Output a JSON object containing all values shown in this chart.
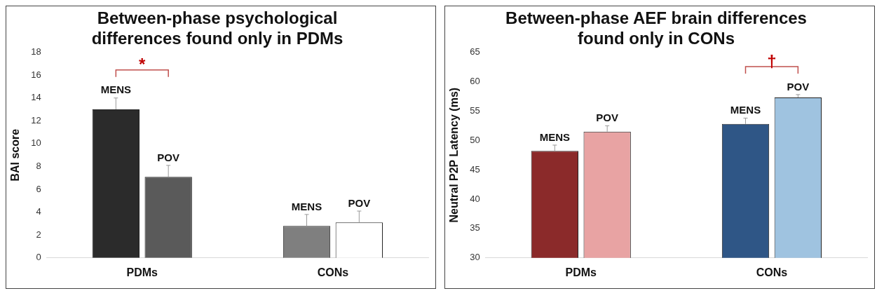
{
  "chart_data": [
    {
      "type": "bar",
      "title": "Between-phase psychological differences found only in PDMs",
      "ylabel": "BAI score",
      "categories": [
        "PDMs",
        "CONs"
      ],
      "series": [
        {
          "name": "MENS",
          "colors": [
            "#2b2b2b",
            "#7f7f7f"
          ],
          "values": [
            13.0,
            2.8
          ],
          "errors": [
            1.0,
            1.0
          ]
        },
        {
          "name": "POV",
          "colors": [
            "#5a5a5a",
            "#ffffff"
          ],
          "values": [
            7.1,
            3.1
          ],
          "errors": [
            1.0,
            1.0
          ]
        }
      ],
      "ylim": [
        0,
        18
      ],
      "yticks": [
        0,
        2,
        4,
        6,
        8,
        10,
        12,
        14,
        16,
        18
      ],
      "grid": false,
      "legend": false,
      "annotations": [
        "*"
      ]
    },
    {
      "type": "bar",
      "title": "Between-phase AEF brain differences found only in CONs",
      "ylabel": "Neutral P2P Latency (ms)",
      "categories": [
        "PDMs",
        "CONs"
      ],
      "series": [
        {
          "name": "MENS",
          "colors": [
            "#8b2a2a",
            "#2f5686"
          ],
          "values": [
            48.2,
            52.8
          ],
          "errors": [
            1.0,
            1.0
          ]
        },
        {
          "name": "POV",
          "colors": [
            "#e8a3a3",
            "#9fc3e0"
          ],
          "values": [
            51.5,
            57.3
          ],
          "errors": [
            1.0,
            0.5
          ]
        }
      ],
      "ylim": [
        30,
        65
      ],
      "yticks": [
        30,
        35,
        40,
        45,
        50,
        55,
        60,
        65
      ],
      "grid": false,
      "legend": false,
      "annotations": [
        "†"
      ]
    }
  ]
}
